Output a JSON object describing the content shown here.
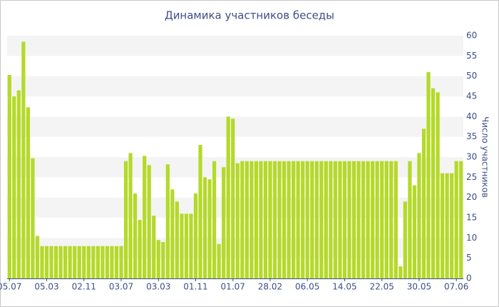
{
  "chart_data": {
    "type": "bar",
    "title": "Динамика участников беседы",
    "y_label": "Число участников",
    "categories": [
      "05.07",
      null,
      null,
      null,
      null,
      null,
      null,
      null,
      "05.03",
      null,
      null,
      null,
      null,
      null,
      null,
      null,
      "02.11",
      null,
      null,
      null,
      null,
      null,
      null,
      null,
      "03.07",
      null,
      null,
      null,
      null,
      null,
      null,
      null,
      "03.03",
      null,
      null,
      null,
      null,
      null,
      null,
      null,
      "01.11",
      null,
      null,
      null,
      null,
      null,
      null,
      null,
      "01.07",
      null,
      null,
      null,
      null,
      null,
      null,
      null,
      "28.02",
      null,
      null,
      null,
      null,
      null,
      null,
      null,
      "06.05",
      null,
      null,
      null,
      null,
      null,
      null,
      null,
      "14.05",
      null,
      null,
      null,
      null,
      null,
      null,
      null,
      "22.05",
      null,
      null,
      null,
      null,
      null,
      null,
      null,
      "30.05",
      null,
      null,
      null,
      null,
      null,
      null,
      null,
      "07.06",
      null
    ],
    "values": [
      50.3,
      45,
      46.5,
      58.5,
      42.3,
      29.7,
      10.5,
      8,
      8,
      8,
      8,
      8,
      8,
      8,
      8,
      8,
      8,
      8,
      8,
      8,
      8,
      8,
      8,
      8,
      8,
      29,
      31,
      21,
      14.5,
      30.3,
      28,
      15.5,
      9.5,
      9,
      28.2,
      22,
      19,
      16,
      16,
      16,
      21,
      33,
      25,
      24.5,
      29,
      8.5,
      27.5,
      40,
      39.5,
      28.5,
      29,
      29,
      29,
      29,
      29,
      29,
      29,
      29,
      29,
      29,
      29,
      29,
      29,
      29,
      29,
      29,
      29,
      29,
      29,
      29,
      29,
      29,
      29,
      29,
      29,
      29,
      29,
      29,
      29,
      29,
      29,
      29,
      29,
      29,
      3,
      19,
      29,
      23,
      31,
      37,
      51,
      47,
      46,
      26,
      26,
      26,
      29,
      29
    ],
    "color": "#b5d92a",
    "ylim": [
      0,
      60
    ],
    "yticks": [
      0,
      5,
      10,
      15,
      20,
      25,
      30,
      35,
      40,
      45,
      50,
      55,
      60
    ],
    "stripes": true
  }
}
